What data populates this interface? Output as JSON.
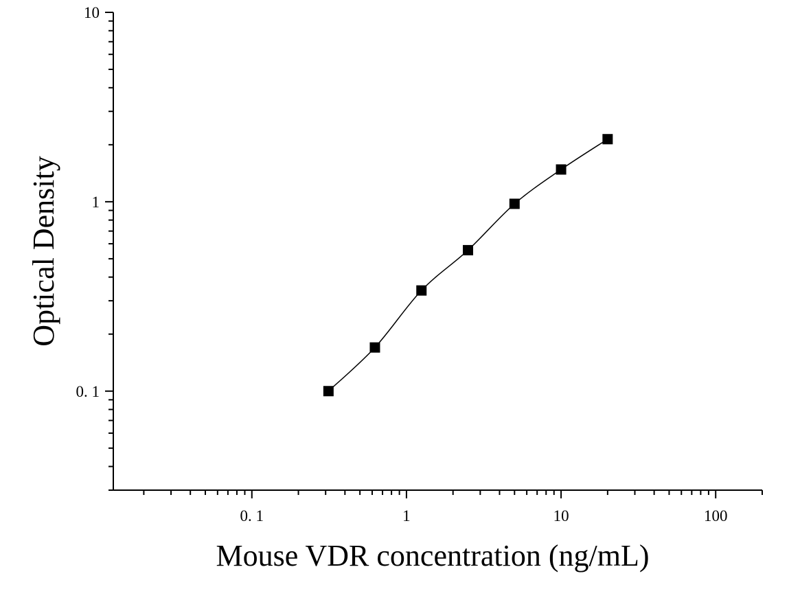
{
  "chart_data": {
    "type": "scatter",
    "title": "",
    "xlabel": "Mouse VDR concentration (ng/mL)",
    "ylabel": "Optical Density",
    "x_scale": "log",
    "y_scale": "log",
    "xlim": [
      0.0127,
      200
    ],
    "ylim": [
      0.03,
      10
    ],
    "x_ticks": [
      {
        "value": 0.1,
        "label": "0. 1"
      },
      {
        "value": 1,
        "label": "1"
      },
      {
        "value": 10,
        "label": "10"
      },
      {
        "value": 100,
        "label": "100"
      }
    ],
    "y_ticks": [
      {
        "value": 0.1,
        "label": "0. 1"
      },
      {
        "value": 1,
        "label": "1"
      },
      {
        "value": 10,
        "label": "10"
      }
    ],
    "grid": false,
    "legend": "none",
    "series": [
      {
        "x": [
          0.313,
          0.625,
          1.25,
          2.5,
          5,
          10,
          20
        ],
        "y": [
          0.1,
          0.17,
          0.34,
          0.555,
          0.975,
          1.48,
          2.14
        ],
        "marker": "square",
        "line": "smooth",
        "color": "#000000"
      }
    ]
  }
}
